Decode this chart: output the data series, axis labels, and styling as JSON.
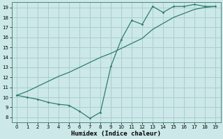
{
  "line1_x": [
    0,
    1,
    2,
    3,
    4,
    5,
    6,
    7,
    8,
    9,
    10,
    11,
    12,
    13,
    14,
    15,
    16,
    17,
    18,
    19
  ],
  "line1_y": [
    10.2,
    10.0,
    9.8,
    9.5,
    9.3,
    9.2,
    8.6,
    7.9,
    8.5,
    13.1,
    15.8,
    17.7,
    17.3,
    19.1,
    18.5,
    19.1,
    19.1,
    19.3,
    19.1,
    19.1
  ],
  "line2_x": [
    0,
    1,
    2,
    3,
    4,
    5,
    6,
    7,
    8,
    9,
    10,
    11,
    12,
    13,
    14,
    15,
    16,
    17,
    18,
    19
  ],
  "line2_y": [
    10.2,
    10.6,
    11.1,
    11.6,
    12.1,
    12.5,
    13.0,
    13.5,
    14.0,
    14.4,
    14.9,
    15.4,
    15.9,
    16.8,
    17.4,
    18.0,
    18.4,
    18.8,
    19.0,
    19.1
  ],
  "color": "#2e7d6e",
  "bg_color": "#cce8e8",
  "grid_color": "#aacece",
  "xlabel": "Humidex (Indice chaleur)",
  "xlim": [
    -0.5,
    19.5
  ],
  "ylim": [
    7.5,
    19.5
  ],
  "xticks": [
    0,
    1,
    2,
    3,
    4,
    5,
    6,
    7,
    8,
    9,
    10,
    11,
    12,
    13,
    14,
    15,
    16,
    17,
    18,
    19
  ],
  "yticks": [
    8,
    9,
    10,
    11,
    12,
    13,
    14,
    15,
    16,
    17,
    18,
    19
  ],
  "xlabel_fontsize": 6.5
}
